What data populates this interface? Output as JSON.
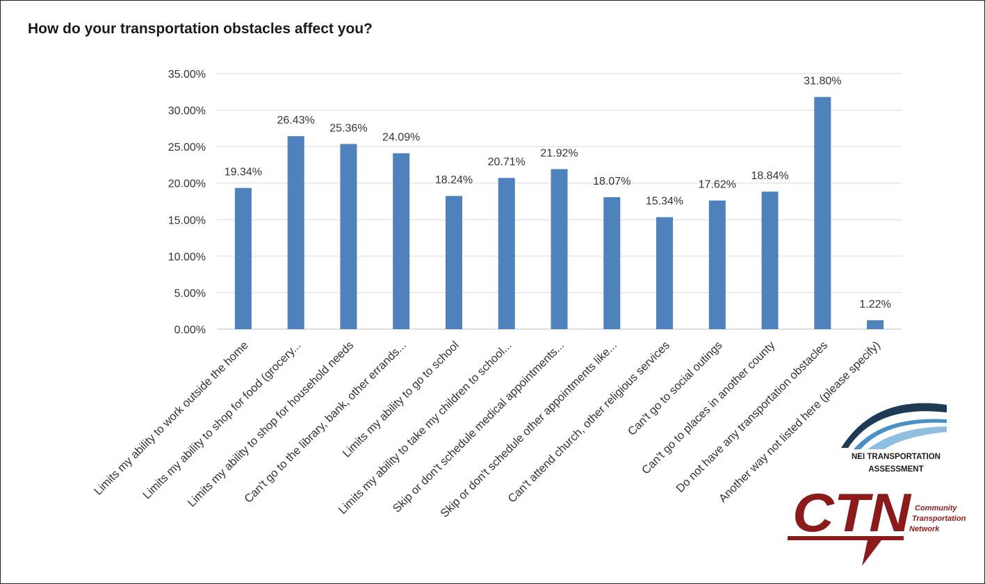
{
  "chart_data": {
    "type": "bar",
    "title": "How do your transportation obstacles affect you?",
    "xlabel": "",
    "ylabel": "",
    "ylim": [
      0,
      35
    ],
    "yticks": [
      "0.00%",
      "5.00%",
      "10.00%",
      "15.00%",
      "20.00%",
      "25.00%",
      "30.00%",
      "35.00%"
    ],
    "grid": true,
    "categories": [
      "Limits my ability to work outside the home",
      "Limits my ability to shop for food (grocery...",
      "Limits my ability to shop for household needs",
      "Can't go to the library, bank, other errands...",
      "Limits my ability to go to school",
      "Limits my ability to take my children to school...",
      "Skip or don't schedule medical appointments...",
      "Skip or don't schedule other appointments like...",
      "Can't attend church, other religious services",
      "Can't go to social outings",
      "Can't go to places in another county",
      "Do not have any transportation obstacles",
      "Another way not listed here (please specify)"
    ],
    "values": [
      19.34,
      26.43,
      25.36,
      24.09,
      18.24,
      20.71,
      21.92,
      18.07,
      15.34,
      17.62,
      18.84,
      31.8,
      1.22
    ],
    "data_labels": [
      "19.34%",
      "26.43%",
      "25.36%",
      "24.09%",
      "18.24%",
      "20.71%",
      "21.92%",
      "18.07%",
      "15.34%",
      "17.62%",
      "18.84%",
      "31.80%",
      "1.22%"
    ],
    "bar_color": "#4f81bd"
  },
  "logos": {
    "nei": {
      "line1": "NEI TRANSPORTATION",
      "line2": "ASSESSMENT",
      "color_dark": "#1f3a54",
      "color_light": "#4a90c8"
    },
    "ctn": {
      "mark": "CTN",
      "words": [
        "Community",
        "Transportation",
        "Network"
      ],
      "color": "#8b1a1a"
    }
  }
}
